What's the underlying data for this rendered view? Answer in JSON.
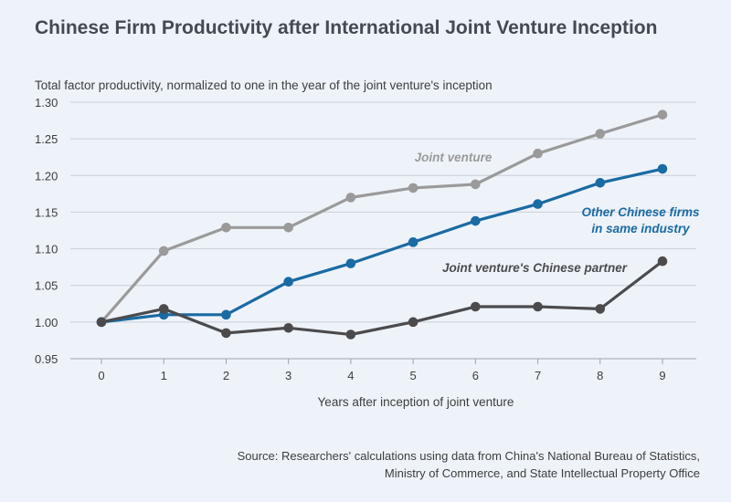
{
  "page": {
    "title": "Chinese Firm Productivity after International Joint Venture Inception",
    "subtitle": "Total factor productivity, normalized to one in the year of the joint venture's inception",
    "xlabel": "Years after inception of joint venture",
    "source_lines": [
      "Source: Researchers' calculations using data from China's National Bureau of Statistics,",
      "Ministry of Commerce, and State Intellectual Property Office"
    ]
  },
  "chart_data": {
    "type": "line",
    "x": [
      0,
      1,
      2,
      3,
      4,
      5,
      6,
      7,
      8,
      9
    ],
    "xlabel": "Years after inception of joint venture",
    "ylabel": "Total factor productivity, normalized to one in the year of the joint venture's inception",
    "ylim": [
      0.95,
      1.3
    ],
    "yticks": [
      "0.95",
      "1.00",
      "1.05",
      "1.10",
      "1.15",
      "1.20",
      "1.25",
      "1.30"
    ],
    "xticks": [
      "0",
      "1",
      "2",
      "3",
      "4",
      "5",
      "6",
      "7",
      "8",
      "9"
    ],
    "grid": "horizontal",
    "series": [
      {
        "name": "Joint venture",
        "label_lines": [
          "Joint venture"
        ],
        "color": "#9a9a9a",
        "values": [
          1.0,
          1.097,
          1.129,
          1.129,
          1.17,
          1.183,
          1.188,
          1.23,
          1.257,
          1.283
        ]
      },
      {
        "name": "Other Chinese firms in same industry",
        "label_lines": [
          "Other Chinese firms",
          "in same industry"
        ],
        "color": "#1a6aa3",
        "values": [
          1.0,
          1.01,
          1.01,
          1.055,
          1.08,
          1.109,
          1.138,
          1.161,
          1.19,
          1.209
        ]
      },
      {
        "name": "Joint venture's Chinese partner",
        "label_lines": [
          "Joint venture's Chinese partner"
        ],
        "color": "#4b4b4e",
        "values": [
          1.0,
          1.018,
          0.985,
          0.992,
          0.983,
          1.0,
          1.021,
          1.021,
          1.018,
          1.083
        ]
      }
    ]
  }
}
